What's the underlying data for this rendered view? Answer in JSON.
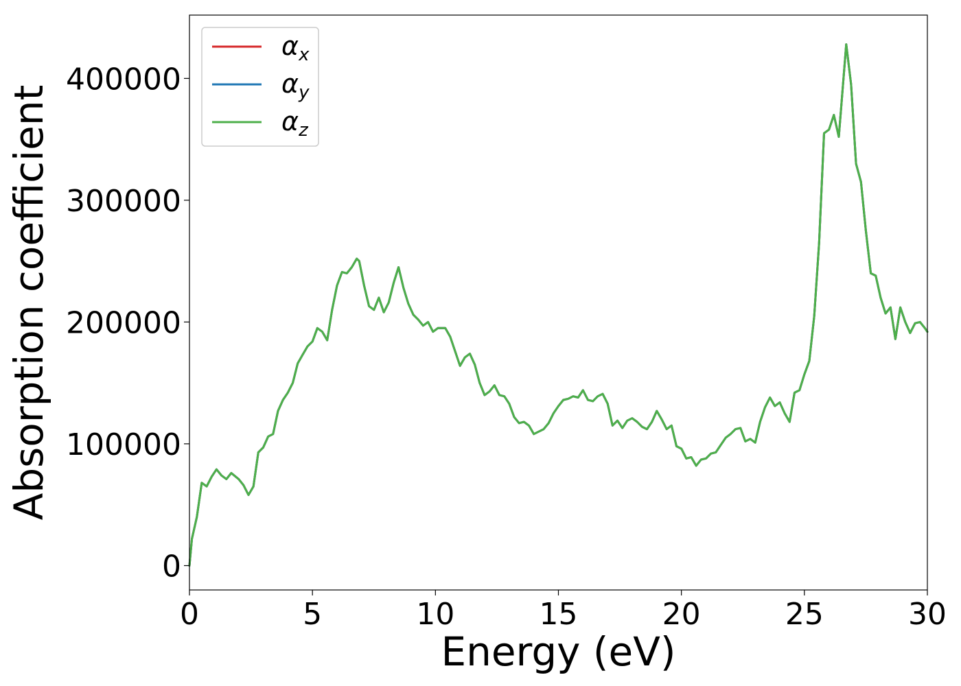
{
  "chart_data": {
    "type": "line",
    "xlabel": "Energy (eV)",
    "ylabel": "Absorption coefficient",
    "xlim": [
      0,
      30
    ],
    "ylim": [
      -20000,
      452000
    ],
    "xticks": [
      "0",
      "5",
      "10",
      "15",
      "20",
      "25",
      "30"
    ],
    "yticks": [
      "0",
      "100000",
      "200000",
      "300000",
      "400000"
    ],
    "grid": false,
    "legend_position": "top-left",
    "x": [
      0,
      0.1,
      0.3,
      0.5,
      0.7,
      0.9,
      1.1,
      1.3,
      1.5,
      1.7,
      2.0,
      2.2,
      2.4,
      2.6,
      2.8,
      3.0,
      3.2,
      3.4,
      3.6,
      3.8,
      4.0,
      4.2,
      4.4,
      4.6,
      4.8,
      5.0,
      5.2,
      5.4,
      5.6,
      5.8,
      6.0,
      6.2,
      6.4,
      6.6,
      6.8,
      6.9,
      7.1,
      7.3,
      7.5,
      7.7,
      7.9,
      8.1,
      8.3,
      8.5,
      8.7,
      8.9,
      9.1,
      9.3,
      9.5,
      9.7,
      9.9,
      10.1,
      10.4,
      10.6,
      10.8,
      11.0,
      11.2,
      11.4,
      11.6,
      11.8,
      12.0,
      12.2,
      12.4,
      12.6,
      12.8,
      13.0,
      13.2,
      13.4,
      13.6,
      13.8,
      14.0,
      14.2,
      14.4,
      14.6,
      14.8,
      15.0,
      15.2,
      15.4,
      15.6,
      15.8,
      16.0,
      16.2,
      16.4,
      16.6,
      16.8,
      17.0,
      17.2,
      17.4,
      17.6,
      17.8,
      18.0,
      18.2,
      18.4,
      18.6,
      18.8,
      19.0,
      19.2,
      19.4,
      19.6,
      19.8,
      20.0,
      20.2,
      20.4,
      20.6,
      20.8,
      21.0,
      21.2,
      21.4,
      21.6,
      21.8,
      22.0,
      22.2,
      22.4,
      22.6,
      22.8,
      23.0,
      23.2,
      23.4,
      23.6,
      23.8,
      24.0,
      24.2,
      24.4,
      24.6,
      24.8,
      25.0,
      25.2,
      25.4,
      25.6,
      25.8,
      26.0,
      26.2,
      26.4,
      26.7,
      26.9,
      27.1,
      27.3,
      27.5,
      27.7,
      27.9,
      28.1,
      28.3,
      28.5,
      28.7,
      28.9,
      29.1,
      29.3,
      29.5,
      29.7,
      29.9,
      30.0
    ],
    "series": [
      {
        "name": "α_x",
        "color": "#d62728",
        "values": [
          0,
          22000,
          40000,
          68000,
          65000,
          73000,
          79000,
          74000,
          71000,
          76000,
          71000,
          66000,
          58000,
          65000,
          93000,
          97000,
          106000,
          108000,
          127000,
          136000,
          142000,
          150000,
          166000,
          173000,
          180000,
          184000,
          195000,
          192000,
          185000,
          210000,
          230000,
          241000,
          240000,
          245000,
          252000,
          250000,
          230000,
          213000,
          210000,
          220000,
          208000,
          216000,
          232000,
          245000,
          228000,
          215000,
          206000,
          202000,
          197000,
          200000,
          192000,
          195000,
          195000,
          188000,
          176000,
          164000,
          171000,
          174000,
          165000,
          150000,
          140000,
          143000,
          148000,
          140000,
          139000,
          133000,
          122000,
          117000,
          118000,
          115000,
          108000,
          110000,
          112000,
          117000,
          125000,
          131000,
          136000,
          137000,
          139000,
          138000,
          144000,
          136000,
          135000,
          139000,
          141000,
          133000,
          115000,
          119000,
          113000,
          119000,
          121000,
          118000,
          114000,
          112000,
          118000,
          127000,
          120000,
          112000,
          115000,
          98000,
          96000,
          88000,
          89000,
          82000,
          87000,
          88000,
          92000,
          93000,
          99000,
          105000,
          108000,
          112000,
          113000,
          102000,
          104000,
          101000,
          118000,
          130000,
          138000,
          131000,
          134000,
          125000,
          118000,
          142000,
          144000,
          157000,
          168000,
          205000,
          265000,
          355000,
          358000,
          370000,
          352000,
          428000,
          395000,
          330000,
          315000,
          275000,
          240000,
          238000,
          220000,
          207000,
          212000,
          186000,
          212000,
          200000,
          191000,
          199000,
          200000,
          195000,
          192000
        ]
      },
      {
        "name": "α_y",
        "color": "#1f77b4",
        "values": [
          0,
          22000,
          40000,
          68000,
          65000,
          73000,
          79000,
          74000,
          71000,
          76000,
          71000,
          66000,
          58000,
          65000,
          93000,
          97000,
          106000,
          108000,
          127000,
          136000,
          142000,
          150000,
          166000,
          173000,
          180000,
          184000,
          195000,
          192000,
          185000,
          210000,
          230000,
          241000,
          240000,
          245000,
          252000,
          250000,
          230000,
          213000,
          210000,
          220000,
          208000,
          216000,
          232000,
          245000,
          228000,
          215000,
          206000,
          202000,
          197000,
          200000,
          192000,
          195000,
          195000,
          188000,
          176000,
          164000,
          171000,
          174000,
          165000,
          150000,
          140000,
          143000,
          148000,
          140000,
          139000,
          133000,
          122000,
          117000,
          118000,
          115000,
          108000,
          110000,
          112000,
          117000,
          125000,
          131000,
          136000,
          137000,
          139000,
          138000,
          144000,
          136000,
          135000,
          139000,
          141000,
          133000,
          115000,
          119000,
          113000,
          119000,
          121000,
          118000,
          114000,
          112000,
          118000,
          127000,
          120000,
          112000,
          115000,
          98000,
          96000,
          88000,
          89000,
          82000,
          87000,
          88000,
          92000,
          93000,
          99000,
          105000,
          108000,
          112000,
          113000,
          102000,
          104000,
          101000,
          118000,
          130000,
          138000,
          131000,
          134000,
          125000,
          118000,
          142000,
          144000,
          157000,
          168000,
          205000,
          265000,
          355000,
          358000,
          370000,
          352000,
          428000,
          395000,
          330000,
          315000,
          275000,
          240000,
          238000,
          220000,
          207000,
          212000,
          186000,
          212000,
          200000,
          191000,
          199000,
          200000,
          195000,
          192000
        ]
      },
      {
        "name": "α_z",
        "color": "#4daf4a",
        "values": [
          0,
          22000,
          40000,
          68000,
          65000,
          73000,
          79000,
          74000,
          71000,
          76000,
          71000,
          66000,
          58000,
          65000,
          93000,
          97000,
          106000,
          108000,
          127000,
          136000,
          142000,
          150000,
          166000,
          173000,
          180000,
          184000,
          195000,
          192000,
          185000,
          210000,
          230000,
          241000,
          240000,
          245000,
          252000,
          250000,
          230000,
          213000,
          210000,
          220000,
          208000,
          216000,
          232000,
          245000,
          228000,
          215000,
          206000,
          202000,
          197000,
          200000,
          192000,
          195000,
          195000,
          188000,
          176000,
          164000,
          171000,
          174000,
          165000,
          150000,
          140000,
          143000,
          148000,
          140000,
          139000,
          133000,
          122000,
          117000,
          118000,
          115000,
          108000,
          110000,
          112000,
          117000,
          125000,
          131000,
          136000,
          137000,
          139000,
          138000,
          144000,
          136000,
          135000,
          139000,
          141000,
          133000,
          115000,
          119000,
          113000,
          119000,
          121000,
          118000,
          114000,
          112000,
          118000,
          127000,
          120000,
          112000,
          115000,
          98000,
          96000,
          88000,
          89000,
          82000,
          87000,
          88000,
          92000,
          93000,
          99000,
          105000,
          108000,
          112000,
          113000,
          102000,
          104000,
          101000,
          118000,
          130000,
          138000,
          131000,
          134000,
          125000,
          118000,
          142000,
          144000,
          157000,
          168000,
          205000,
          265000,
          355000,
          358000,
          370000,
          352000,
          428000,
          395000,
          330000,
          315000,
          275000,
          240000,
          238000,
          220000,
          207000,
          212000,
          186000,
          212000,
          200000,
          191000,
          199000,
          200000,
          195000,
          192000
        ]
      }
    ],
    "legend": [
      {
        "symbol": "α",
        "sub": "x",
        "color": "#d62728"
      },
      {
        "symbol": "α",
        "sub": "y",
        "color": "#1f77b4"
      },
      {
        "symbol": "α",
        "sub": "z",
        "color": "#4daf4a"
      }
    ]
  }
}
